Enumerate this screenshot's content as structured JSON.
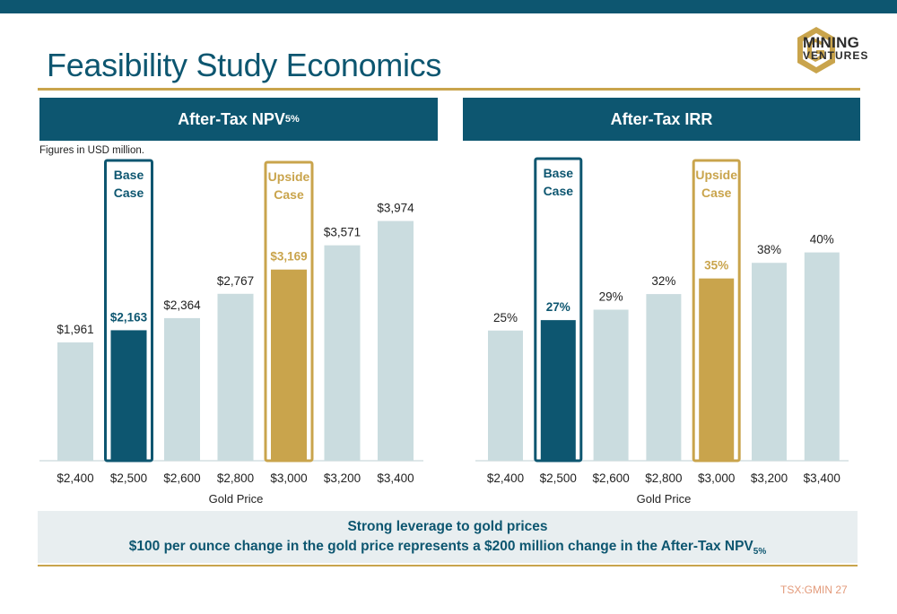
{
  "page": {
    "title": "Feasibility Study Economics",
    "note": "Figures in USD million.",
    "page_ref": "TSX:GMIN 27"
  },
  "logo": {
    "line1": "MINING",
    "line2": "VENTURES",
    "icon": "g-hexagon-logo-icon",
    "colors": {
      "gold": "#c9a44c",
      "dark": "#2c2c2c"
    }
  },
  "colors": {
    "header": "#0d5670",
    "base": "#0d5670",
    "upside": "#c9a44c",
    "other": "#cadcdf",
    "label": "#222222"
  },
  "footer": {
    "line1": "Strong leverage to gold prices",
    "line2_main": "$100 per ounce change in the gold price represents a $200 million change in the After-Tax NPV",
    "line2_sub": "5%"
  },
  "chart_data": [
    {
      "type": "bar",
      "title": "After-Tax NPV",
      "title_sub": "5%",
      "xlabel": "Gold Price",
      "categories": [
        "$2,400",
        "$2,500",
        "$2,600",
        "$2,800",
        "$3,000",
        "$3,200",
        "$3,400"
      ],
      "values": [
        1961,
        2163,
        2364,
        2767,
        3169,
        3571,
        3974
      ],
      "labels": [
        "$1,961",
        "$2,163",
        "$2,364",
        "$2,767",
        "$3,169",
        "$3,571",
        "$3,974"
      ],
      "highlights": {
        "base_index": 1,
        "upside_index": 4
      },
      "base_label": [
        "Base",
        "Case"
      ],
      "upside_label": [
        "Upside",
        "Case"
      ],
      "ylim": [
        0,
        4000
      ]
    },
    {
      "type": "bar",
      "title": "After-Tax IRR",
      "xlabel": "Gold Price",
      "categories": [
        "$2,400",
        "$2,500",
        "$2,600",
        "$2,800",
        "$3,000",
        "$3,200",
        "$3,400"
      ],
      "values": [
        25,
        27,
        29,
        32,
        35,
        38,
        40
      ],
      "labels": [
        "25%",
        "27%",
        "29%",
        "32%",
        "35%",
        "38%",
        "40%"
      ],
      "highlights": {
        "base_index": 1,
        "upside_index": 4
      },
      "base_label": [
        "Base",
        "Case"
      ],
      "upside_label": [
        "Upside",
        "Case"
      ],
      "ylim": [
        0,
        44
      ]
    }
  ]
}
